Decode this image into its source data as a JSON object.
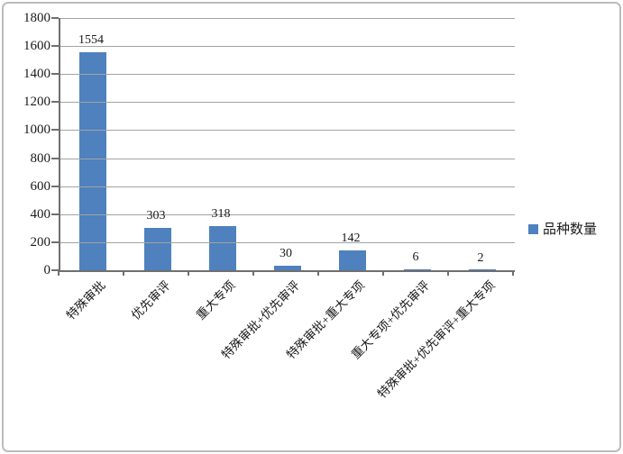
{
  "chart_data": {
    "type": "bar",
    "title": "",
    "categories": [
      "特殊审批",
      "优先审评",
      "重大专项",
      "特殊审批+优先审评",
      "特殊审批+重大专项",
      "重大专项+优先审评",
      "特殊审批+优先审评+重大专项"
    ],
    "values": [
      1554,
      303,
      318,
      30,
      142,
      6,
      2
    ],
    "series_name": "品种数量",
    "ylim": [
      0,
      1800
    ],
    "ytick_step": 200,
    "ytick_labels": [
      "0",
      "200",
      "400",
      "600",
      "800",
      "1000",
      "1200",
      "1400",
      "1600",
      "1800"
    ],
    "grid": true,
    "legend_position": "right",
    "bar_orientation": "vertical"
  },
  "legend": {
    "marker_icon": "square-icon"
  },
  "colors": {
    "bar": "#4e81bd",
    "gridline": "#a3a3a3",
    "axis": "#6f6f6f",
    "text": "#1a1a1a",
    "frame_border": "#bcbcbc",
    "background": "#ffffff"
  }
}
